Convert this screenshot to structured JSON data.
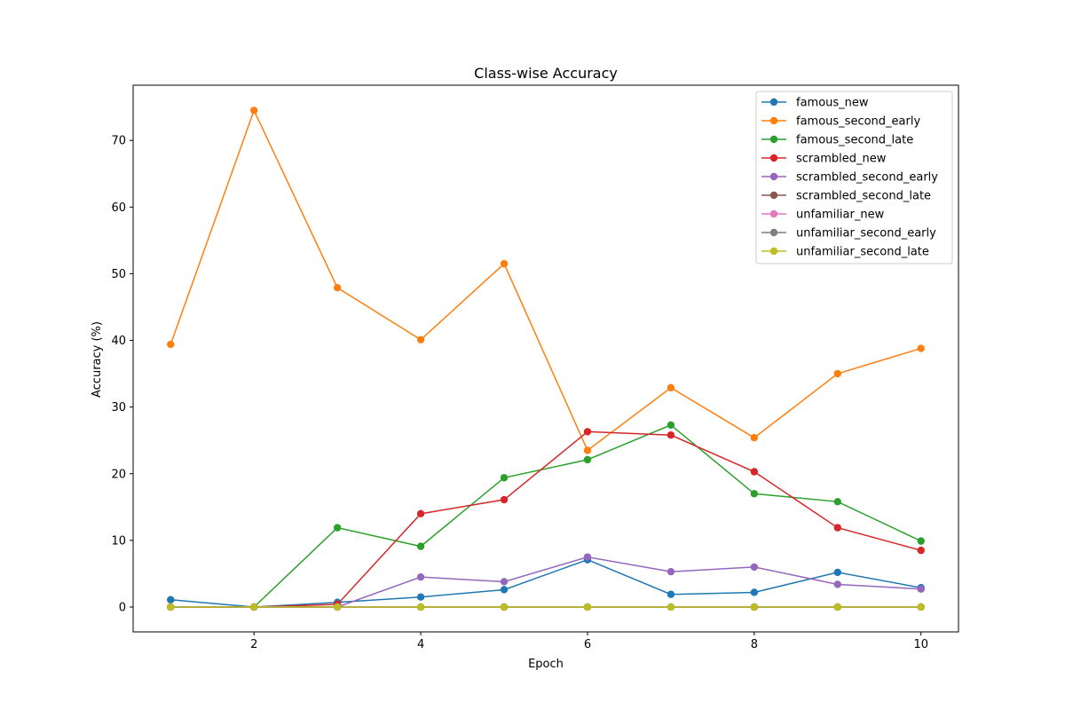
{
  "chart_data": {
    "type": "line",
    "title": "Class-wise Accuracy",
    "xlabel": "Epoch",
    "ylabel": "Accuracy (%)",
    "x": [
      1,
      2,
      3,
      4,
      5,
      6,
      7,
      8,
      9,
      10
    ],
    "xlim": [
      0.55,
      10.45
    ],
    "ylim": [
      -3.73,
      78.28
    ],
    "xticks": [
      2,
      4,
      6,
      8,
      10
    ],
    "yticks": [
      0,
      10,
      20,
      30,
      40,
      50,
      60,
      70
    ],
    "grid": false,
    "legend_position": "top-right",
    "series": [
      {
        "name": "famous_new",
        "color": "#1f77b4",
        "values": [
          1.1,
          0.0,
          0.7,
          1.5,
          2.6,
          7.1,
          1.9,
          2.2,
          5.2,
          2.9
        ]
      },
      {
        "name": "famous_second_early",
        "color": "#ff7f0e",
        "values": [
          39.4,
          74.5,
          47.9,
          40.1,
          51.5,
          23.5,
          32.9,
          25.4,
          35.0,
          38.8
        ]
      },
      {
        "name": "famous_second_late",
        "color": "#2ca02c",
        "values": [
          0.0,
          0.0,
          11.9,
          9.1,
          19.4,
          22.1,
          27.3,
          17.0,
          15.8,
          9.9
        ]
      },
      {
        "name": "scrambled_new",
        "color": "#d62728",
        "values": [
          0.0,
          0.0,
          0.4,
          14.0,
          16.1,
          26.3,
          25.8,
          20.3,
          11.9,
          8.5
        ]
      },
      {
        "name": "scrambled_second_early",
        "color": "#9467bd",
        "values": [
          0.0,
          0.0,
          0.0,
          4.5,
          3.8,
          7.5,
          5.3,
          6.0,
          3.4,
          2.7
        ]
      },
      {
        "name": "scrambled_second_late",
        "color": "#8c564b",
        "values": [
          0,
          0,
          0,
          0,
          0,
          0,
          0,
          0,
          0,
          0
        ]
      },
      {
        "name": "unfamiliar_new",
        "color": "#e377c2",
        "values": [
          0,
          0,
          0,
          0,
          0,
          0,
          0,
          0,
          0,
          0
        ]
      },
      {
        "name": "unfamiliar_second_early",
        "color": "#7f7f7f",
        "values": [
          0,
          0,
          0,
          0,
          0,
          0,
          0,
          0,
          0,
          0
        ]
      },
      {
        "name": "unfamiliar_second_late",
        "color": "#bcbd22",
        "values": [
          0,
          0,
          0,
          0,
          0,
          0,
          0,
          0,
          0,
          0
        ]
      }
    ]
  }
}
